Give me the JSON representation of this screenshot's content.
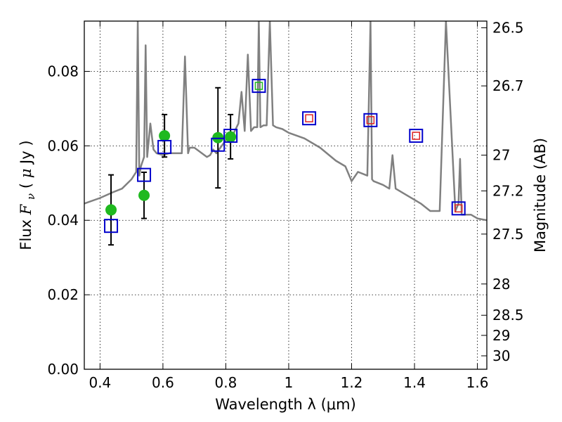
{
  "chart_data": {
    "type": "scatter",
    "xlabel": "Wavelength  λ (μm)",
    "ylabel": "Flux  F_ν  ( μJy )",
    "ylabel_parts": [
      "Flux  ",
      "F",
      "ν",
      "  (  ",
      "μ",
      "Jy )"
    ],
    "y2label": "Magnitude (AB)",
    "xlim": [
      0.35,
      1.63
    ],
    "ylim": [
      0.0,
      0.0935
    ],
    "grid": true,
    "xticks": [
      {
        "value": 0.4,
        "label": "0.4"
      },
      {
        "value": 0.6,
        "label": "0.6"
      },
      {
        "value": 0.8,
        "label": "0.8"
      },
      {
        "value": 1.0,
        "label": "1"
      },
      {
        "value": 1.2,
        "label": "1.2"
      },
      {
        "value": 1.4,
        "label": "1.4"
      },
      {
        "value": 1.6,
        "label": "1.6"
      }
    ],
    "yticks": [
      {
        "value": 0.0,
        "label": "0.00"
      },
      {
        "value": 0.02,
        "label": "0.02"
      },
      {
        "value": 0.04,
        "label": "0.04"
      },
      {
        "value": 0.06,
        "label": "0.06"
      },
      {
        "value": 0.08,
        "label": "0.08"
      }
    ],
    "y2ticks": [
      {
        "flux": 0.0917,
        "label": "26.5"
      },
      {
        "flux": 0.0761,
        "label": "26.7"
      },
      {
        "flux": 0.0575,
        "label": "27"
      },
      {
        "flux": 0.0479,
        "label": "27.2"
      },
      {
        "flux": 0.0363,
        "label": "27.5"
      },
      {
        "flux": 0.0229,
        "label": "28"
      },
      {
        "flux": 0.0145,
        "label": "28.5"
      },
      {
        "flux": 0.0091,
        "label": "29"
      },
      {
        "flux": 0.0036,
        "label": "30"
      }
    ],
    "series": [
      {
        "kind": "line",
        "color": "#808080",
        "x": [
          0.35,
          0.4,
          0.44,
          0.47,
          0.5,
          0.515,
          0.52,
          0.525,
          0.53,
          0.54,
          0.545,
          0.55,
          0.56,
          0.57,
          0.58,
          0.6,
          0.62,
          0.66,
          0.67,
          0.68,
          0.685,
          0.69,
          0.7,
          0.74,
          0.75,
          0.76,
          0.77,
          0.8,
          0.82,
          0.84,
          0.85,
          0.86,
          0.87,
          0.88,
          0.89,
          0.9,
          0.905,
          0.91,
          0.92,
          0.93,
          0.94,
          0.95,
          0.96,
          0.98,
          1.0,
          1.05,
          1.1,
          1.15,
          1.18,
          1.2,
          1.22,
          1.25,
          1.26,
          1.265,
          1.27,
          1.3,
          1.32,
          1.33,
          1.34,
          1.38,
          1.4,
          1.42,
          1.45,
          1.48,
          1.5,
          1.53,
          1.54,
          1.545,
          1.55,
          1.58,
          1.6,
          1.63
        ],
        "y": [
          0.0445,
          0.046,
          0.0475,
          0.0485,
          0.051,
          0.053,
          0.0935,
          0.052,
          0.0545,
          0.057,
          0.087,
          0.057,
          0.066,
          0.059,
          0.058,
          0.0575,
          0.058,
          0.058,
          0.084,
          0.058,
          0.0595,
          0.0595,
          0.0595,
          0.057,
          0.0575,
          0.059,
          0.058,
          0.0615,
          0.0625,
          0.066,
          0.0745,
          0.064,
          0.0845,
          0.064,
          0.065,
          0.065,
          0.0935,
          0.065,
          0.0655,
          0.0655,
          0.0935,
          0.0655,
          0.065,
          0.0645,
          0.0635,
          0.062,
          0.0595,
          0.056,
          0.0545,
          0.0505,
          0.053,
          0.052,
          0.0935,
          0.051,
          0.0505,
          0.0495,
          0.0485,
          0.0575,
          0.0485,
          0.0465,
          0.0455,
          0.0445,
          0.0425,
          0.0425,
          0.0935,
          0.0425,
          0.0445,
          0.0565,
          0.0415,
          0.0415,
          0.0405,
          0.04
        ]
      },
      {
        "kind": "errorbar",
        "marker": "circle",
        "color": "#1fb91f",
        "errcolor": "#000000",
        "points": [
          {
            "x": 0.435,
            "y": 0.0428,
            "ylo": 0.0334,
            "yhi": 0.0522
          },
          {
            "x": 0.54,
            "y": 0.0467,
            "ylo": 0.0405,
            "yhi": 0.0529
          },
          {
            "x": 0.605,
            "y": 0.0627,
            "ylo": 0.057,
            "yhi": 0.0684
          },
          {
            "x": 0.775,
            "y": 0.0622,
            "ylo": 0.0487,
            "yhi": 0.0756
          },
          {
            "x": 0.815,
            "y": 0.0624,
            "ylo": 0.0565,
            "yhi": 0.0684
          }
        ]
      },
      {
        "kind": "scatter",
        "marker": "open-square",
        "color": "#0000cc",
        "points": [
          {
            "x": 0.435,
            "y": 0.0385
          },
          {
            "x": 0.54,
            "y": 0.0522
          },
          {
            "x": 0.605,
            "y": 0.0597
          },
          {
            "x": 0.775,
            "y": 0.0603
          },
          {
            "x": 0.815,
            "y": 0.0627
          },
          {
            "x": 0.905,
            "y": 0.0761
          },
          {
            "x": 1.065,
            "y": 0.0674
          },
          {
            "x": 1.26,
            "y": 0.0669
          },
          {
            "x": 1.405,
            "y": 0.0627
          },
          {
            "x": 1.54,
            "y": 0.0432
          }
        ]
      },
      {
        "kind": "scatter",
        "marker": "small-open-square",
        "colors": [
          "#1fb91f",
          "#dd2222",
          "#dd2222",
          "#dd2222",
          "#dd2222"
        ],
        "points": [
          {
            "x": 0.905,
            "y": 0.0761
          },
          {
            "x": 1.065,
            "y": 0.0674
          },
          {
            "x": 1.26,
            "y": 0.0669
          },
          {
            "x": 1.405,
            "y": 0.0627
          },
          {
            "x": 1.54,
            "y": 0.0432
          }
        ]
      }
    ]
  }
}
